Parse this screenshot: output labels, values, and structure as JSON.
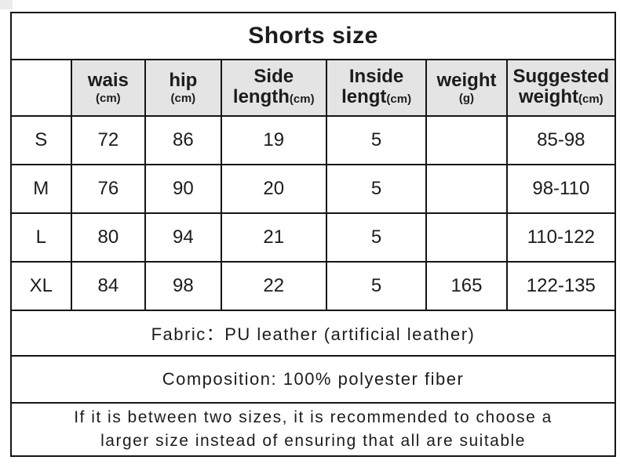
{
  "title": "Shorts size",
  "table": {
    "header": {
      "blank": "",
      "cols": [
        {
          "line1": "wais",
          "line2": "",
          "unit": "(cm)"
        },
        {
          "line1": "hip",
          "line2": "",
          "unit": "(cm)"
        },
        {
          "line1": "Side",
          "line2": "length",
          "unit": "(cm)"
        },
        {
          "line1": "Inside",
          "line2": "lengt",
          "unit": "(cm)"
        },
        {
          "line1": "weight",
          "line2": "",
          "unit": "(g)"
        },
        {
          "line1": "Suggested",
          "line2": "weight",
          "unit": "(cm)"
        }
      ]
    },
    "rows": [
      {
        "size": "S",
        "values": [
          "72",
          "86",
          "19",
          "5",
          "",
          "85-98"
        ]
      },
      {
        "size": "M",
        "values": [
          "76",
          "90",
          "20",
          "5",
          "",
          "98-110"
        ]
      },
      {
        "size": "L",
        "values": [
          "80",
          "94",
          "21",
          "5",
          "",
          "110-122"
        ]
      },
      {
        "size": "XL",
        "values": [
          "84",
          "98",
          "22",
          "5",
          "165",
          "122-135"
        ]
      }
    ]
  },
  "footer": {
    "fabric": "Fabric：PU leather (artificial leather)",
    "composition": "Composition: 100% polyester fiber",
    "note_line1": "If it is between two sizes, it is recommended to choose a",
    "note_line2": "larger size instead of ensuring that all are suitable"
  },
  "colors": {
    "header_bg": "#e4e4e4",
    "border": "#151515",
    "text": "#1c1c1c"
  }
}
